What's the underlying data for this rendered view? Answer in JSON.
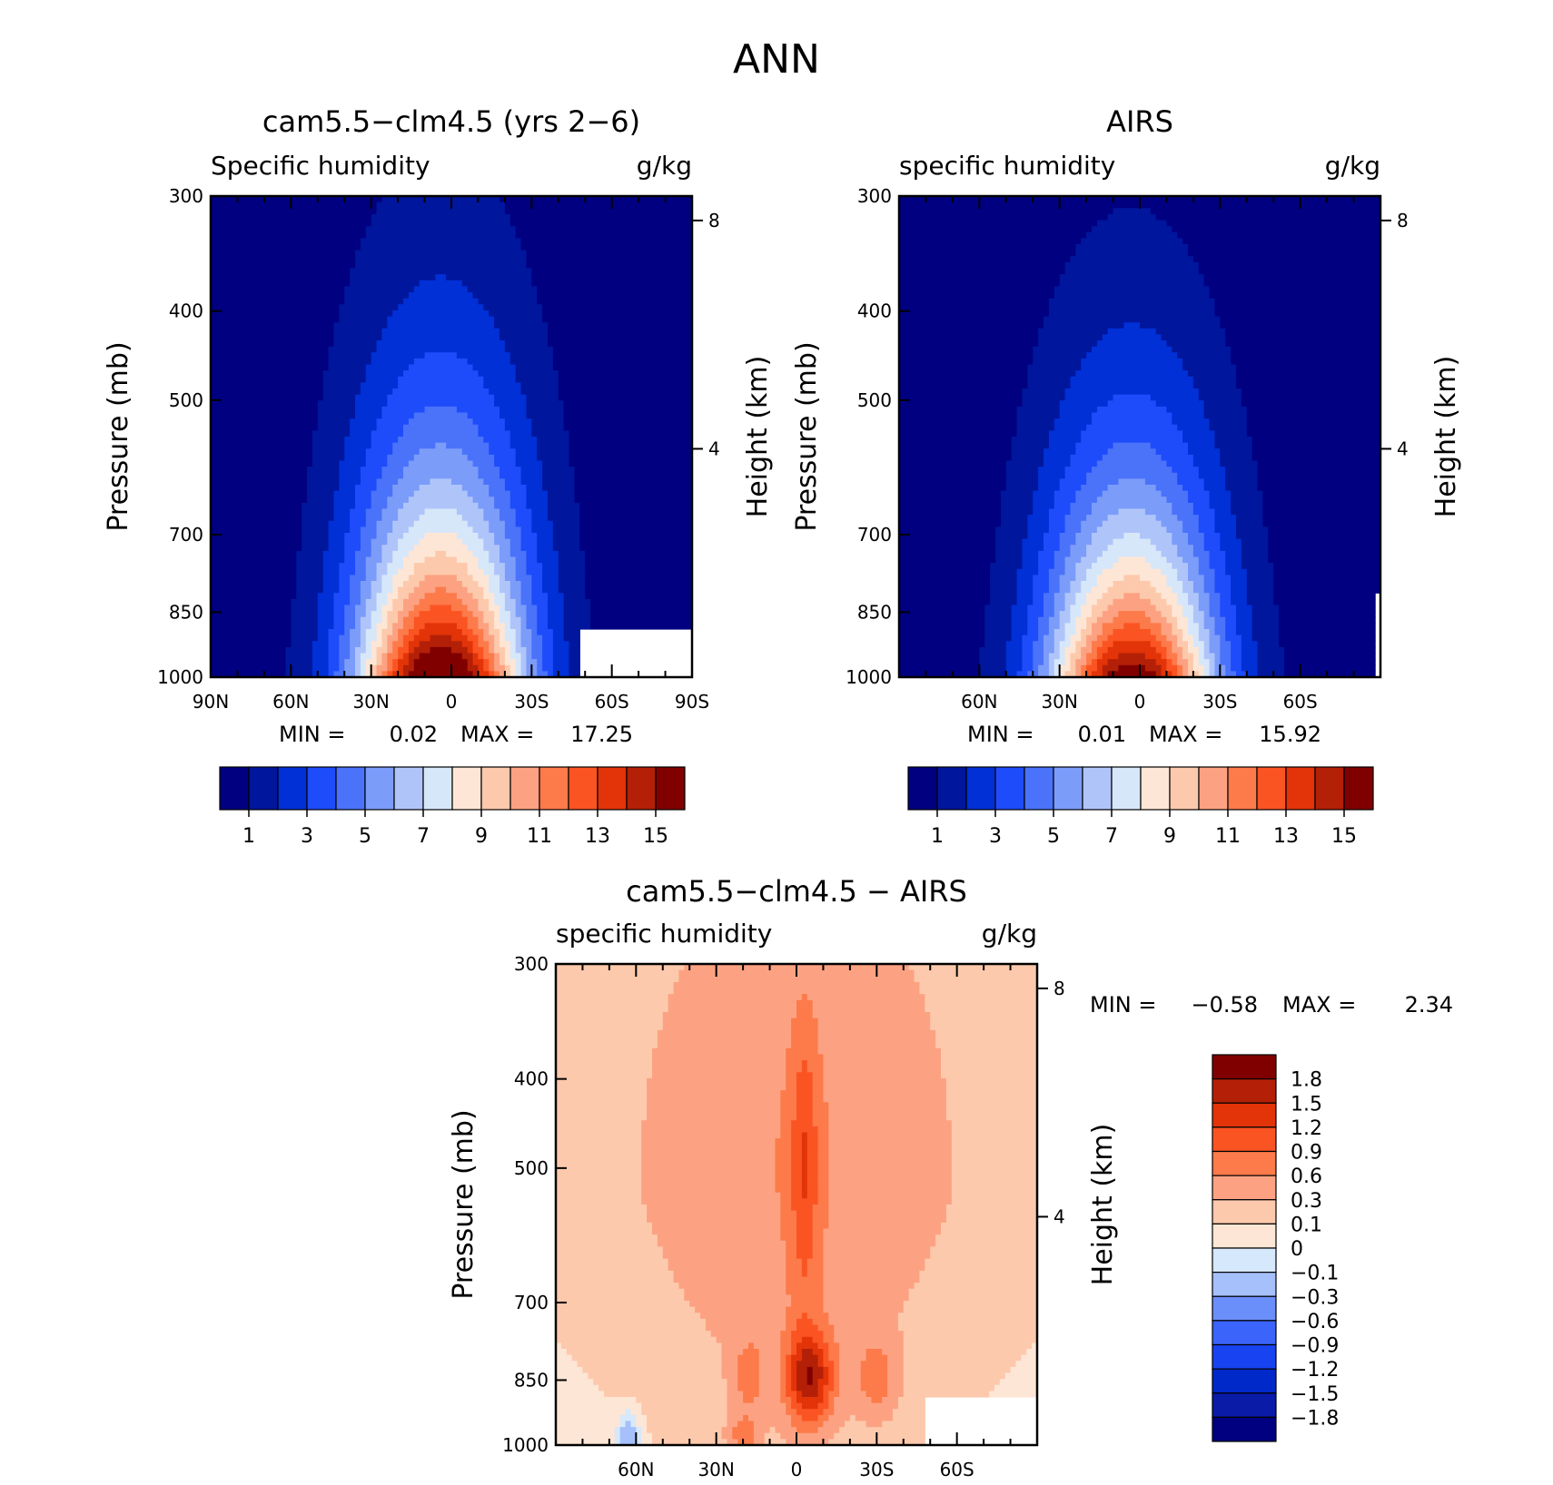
{
  "figure_title": "ANN",
  "colors": {
    "abs_scale": [
      "#000080",
      "#00169c",
      "#0030d6",
      "#1e4cfa",
      "#4a73fa",
      "#7c9cfa",
      "#afc5fa",
      "#d7e7fa",
      "#fde6d5",
      "#fdc9ac",
      "#fca282",
      "#fd7a4a",
      "#fb5423",
      "#e23408",
      "#b42007",
      "#800000"
    ],
    "diff_scale": [
      "#000080",
      "#0a1ba8",
      "#0029c9",
      "#1843f0",
      "#3a64fa",
      "#6b8ffa",
      "#a5c0fa",
      "#d6e8fb",
      "#fde6d5",
      "#fdc9ac",
      "#fca282",
      "#fd7a4a",
      "#fb5423",
      "#e23408",
      "#b42007",
      "#800000"
    ]
  },
  "chart_data": [
    {
      "type": "contour",
      "title": "cam5.5-clm4.5 (yrs 2-6)",
      "left_label": "Specific humidity",
      "right_label": "g/kg",
      "ylabel": "Pressure (mb)",
      "y2label": "Height (km)",
      "x_ticks": [
        "90N",
        "60N",
        "30N",
        "0",
        "30S",
        "60S",
        "90S"
      ],
      "x_range": [
        90,
        -90
      ],
      "y_ticks": [
        300,
        400,
        500,
        700,
        850,
        1000
      ],
      "y_range": [
        300,
        1000
      ],
      "y2_ticks": [
        8,
        4
      ],
      "min_label": "MIN =",
      "min_value": "0.02",
      "max_label": "MAX =",
      "max_value": "17.25",
      "levels": [
        1,
        2,
        3,
        4,
        5,
        6,
        7,
        8,
        9,
        10,
        11,
        12,
        13,
        14,
        15
      ],
      "colorbar_labels": [
        "1",
        "3",
        "5",
        "7",
        "9",
        "11",
        "13",
        "15"
      ]
    },
    {
      "type": "contour",
      "title": "AIRS",
      "left_label": "specific humidity",
      "right_label": "g/kg",
      "ylabel": "Pressure (mb)",
      "y2label": "Height (km)",
      "x_ticks": [
        "60N",
        "30N",
        "0",
        "30S",
        "60S"
      ],
      "x_range": [
        90,
        -90
      ],
      "y_ticks": [
        300,
        400,
        500,
        700,
        850,
        1000
      ],
      "y_range": [
        300,
        1000
      ],
      "y2_ticks": [
        8,
        4
      ],
      "min_label": "MIN =",
      "min_value": "0.01",
      "max_label": "MAX =",
      "max_value": "15.92",
      "levels": [
        1,
        2,
        3,
        4,
        5,
        6,
        7,
        8,
        9,
        10,
        11,
        12,
        13,
        14,
        15
      ],
      "colorbar_labels": [
        "1",
        "3",
        "5",
        "7",
        "9",
        "11",
        "13",
        "15"
      ]
    },
    {
      "type": "contour",
      "title": "cam5.5-clm4.5 - AIRS",
      "left_label": "specific humidity",
      "right_label": "g/kg",
      "ylabel": "Pressure (mb)",
      "y2label": "Height (km)",
      "x_ticks": [
        "60N",
        "30N",
        "0",
        "30S",
        "60S"
      ],
      "x_range": [
        90,
        -90
      ],
      "y_ticks": [
        300,
        400,
        500,
        700,
        850,
        1000
      ],
      "y_range": [
        300,
        1000
      ],
      "y2_ticks": [
        8,
        4
      ],
      "min_label": "MIN =",
      "min_value": "-0.58",
      "max_label": "MAX =",
      "max_value": "2.34",
      "levels": [
        -1.8,
        -1.5,
        -1.2,
        -0.9,
        -0.6,
        -0.3,
        -0.1,
        0,
        0.1,
        0.3,
        0.6,
        0.9,
        1.2,
        1.5,
        1.8
      ],
      "colorbar_labels": [
        "1.8",
        "1.5",
        "1.2",
        "0.9",
        "0.6",
        "0.3",
        "0.1",
        "0",
        "-0.1",
        "-0.3",
        "-0.6",
        "-0.9",
        "-1.2",
        "-1.5",
        "-1.8"
      ]
    }
  ]
}
